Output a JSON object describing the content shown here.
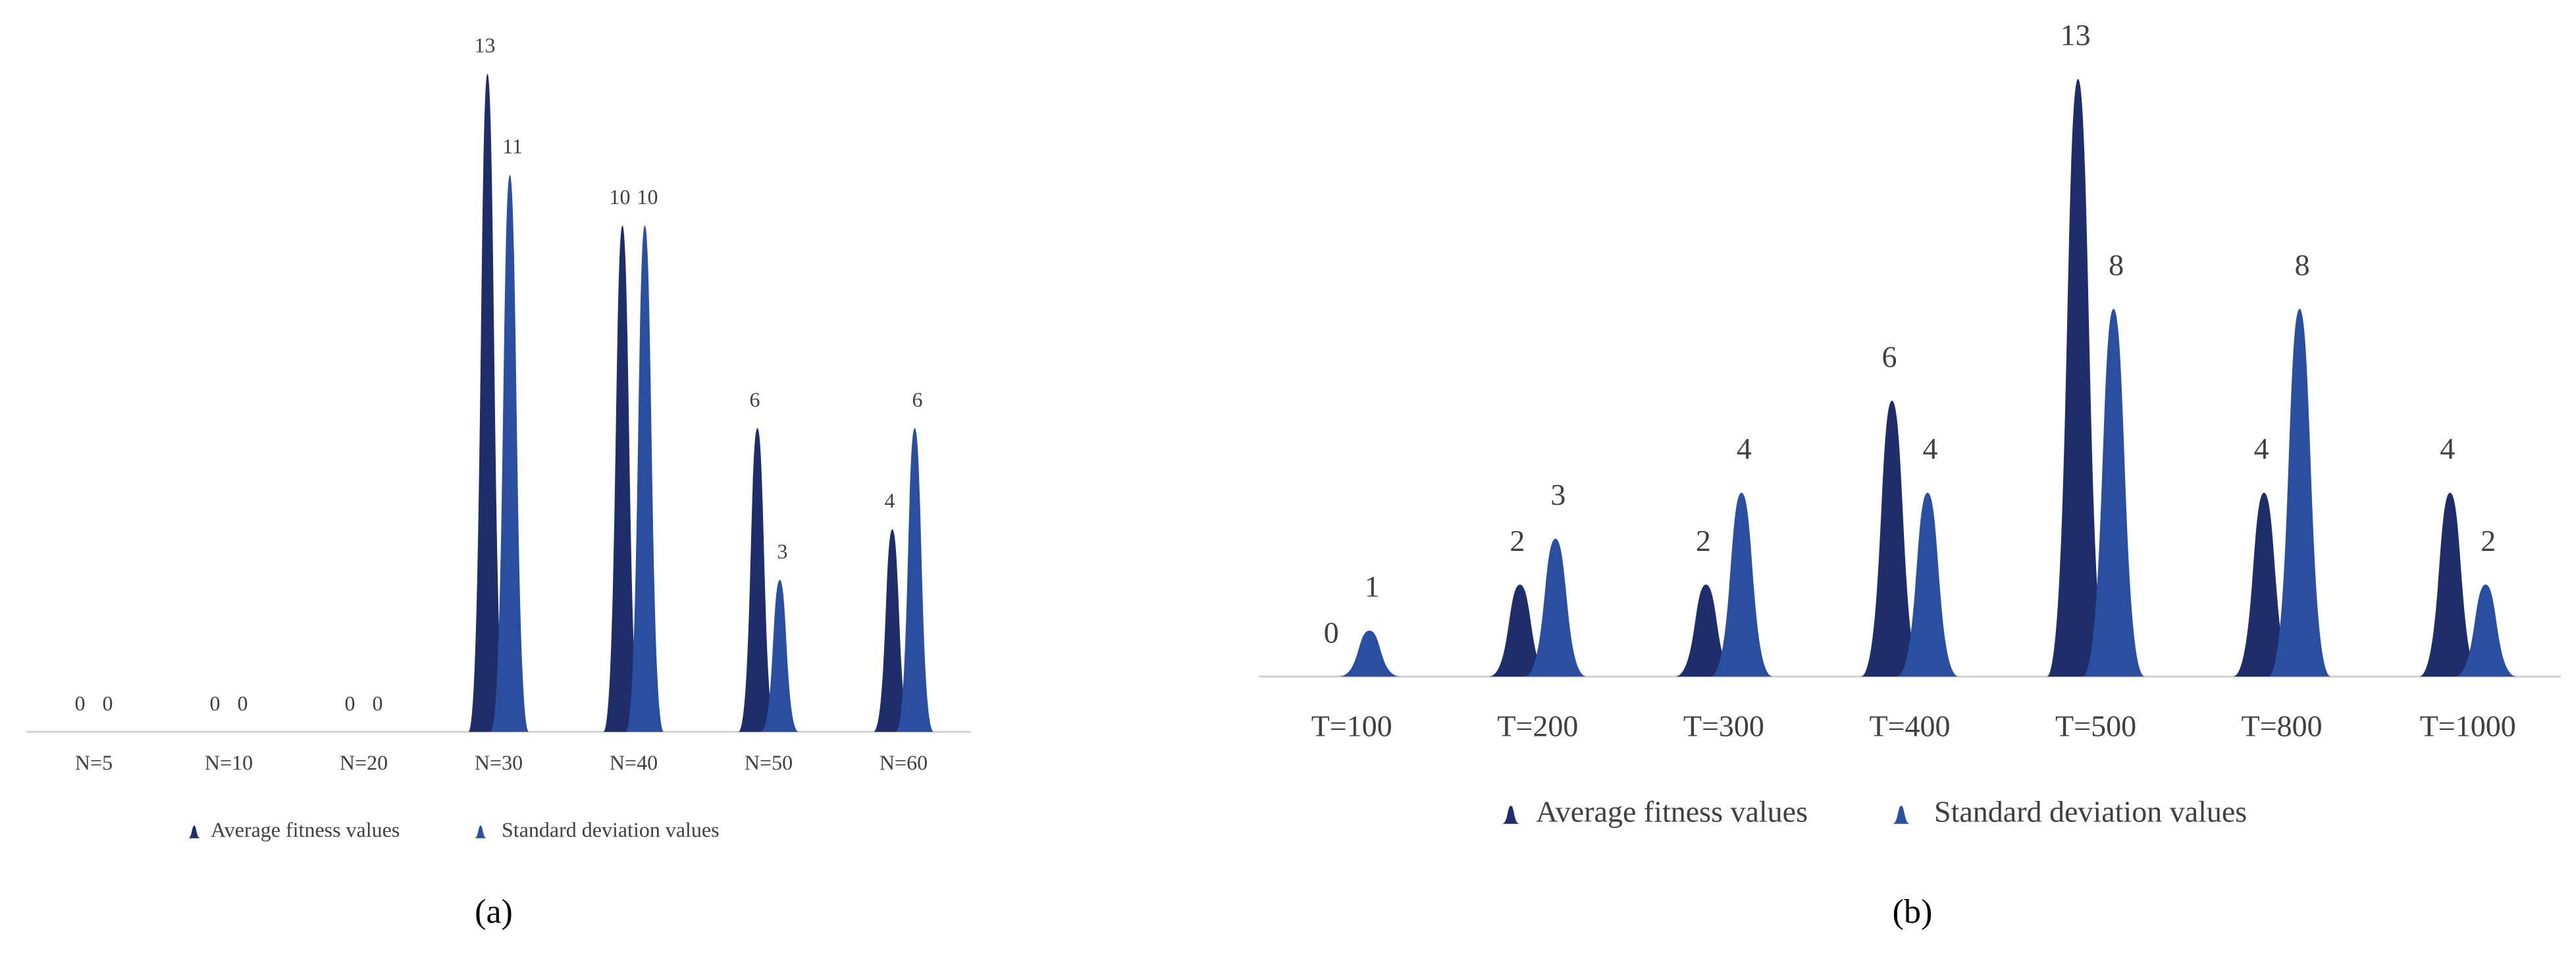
{
  "chart_data": [
    {
      "type": "bar",
      "caption": "(a)",
      "categories": [
        "N=5",
        "N=10",
        "N=20",
        "N=30",
        "N=40",
        "N=50",
        "N=60"
      ],
      "series": [
        {
          "name": "Average fitness values",
          "color": "#1f2d6b",
          "values": [
            0,
            0,
            0,
            13,
            10,
            6,
            4
          ]
        },
        {
          "name": "Standard deviation values",
          "color": "#2b4fa0",
          "values": [
            0,
            0,
            0,
            11,
            10,
            3,
            6
          ]
        }
      ]
    },
    {
      "type": "bar",
      "caption": "(b)",
      "categories": [
        "T=100",
        "T=200",
        "T=300",
        "T=400",
        "T=500",
        "T=800",
        "T=1000"
      ],
      "series": [
        {
          "name": "Average fitness values",
          "color": "#1f2d6b",
          "values": [
            0,
            2,
            2,
            6,
            13,
            4,
            4
          ]
        },
        {
          "name": "Standard deviation values",
          "color": "#2b4fa0",
          "values": [
            1,
            3,
            4,
            4,
            8,
            8,
            2
          ]
        }
      ]
    }
  ]
}
